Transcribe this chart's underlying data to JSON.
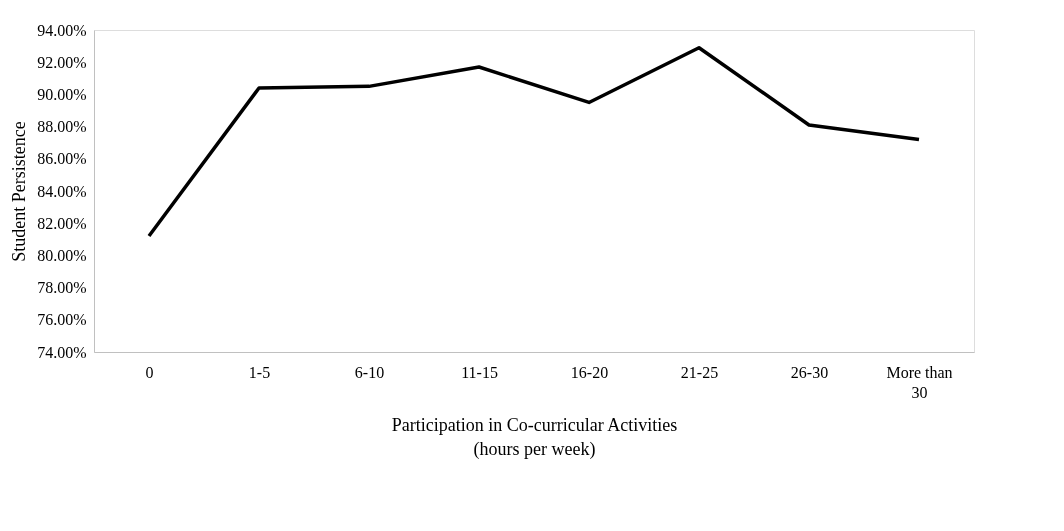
{
  "chart_data": {
    "type": "line",
    "xlabel": "Participation in Co-curricular Activities\n(hours per week)",
    "ylabel": "Student Persistence",
    "categories": [
      "0",
      "1-5",
      "6-10",
      "11-15",
      "16-20",
      "21-25",
      "26-30",
      "More than 30"
    ],
    "series": [
      {
        "color": "#000000",
        "values": [
          81.2,
          90.4,
          90.5,
          91.7,
          89.5,
          92.9,
          88.1,
          87.2
        ]
      }
    ],
    "ylim": [
      74,
      94
    ],
    "yticks": [
      {
        "value": 74,
        "label": "74.00%"
      },
      {
        "value": 76,
        "label": "76.00%"
      },
      {
        "value": 78,
        "label": "78.00%"
      },
      {
        "value": 80,
        "label": "80.00%"
      },
      {
        "value": 82,
        "label": "82.00%"
      },
      {
        "value": 84,
        "label": "84.00%"
      },
      {
        "value": 86,
        "label": "86.00%"
      },
      {
        "value": 88,
        "label": "88.00%"
      },
      {
        "value": 90,
        "label": "90.00%"
      },
      {
        "value": 92,
        "label": "92.00%"
      },
      {
        "value": 94,
        "label": "94.00%"
      }
    ],
    "grid": false,
    "marker": "none",
    "line_style": "solid"
  }
}
